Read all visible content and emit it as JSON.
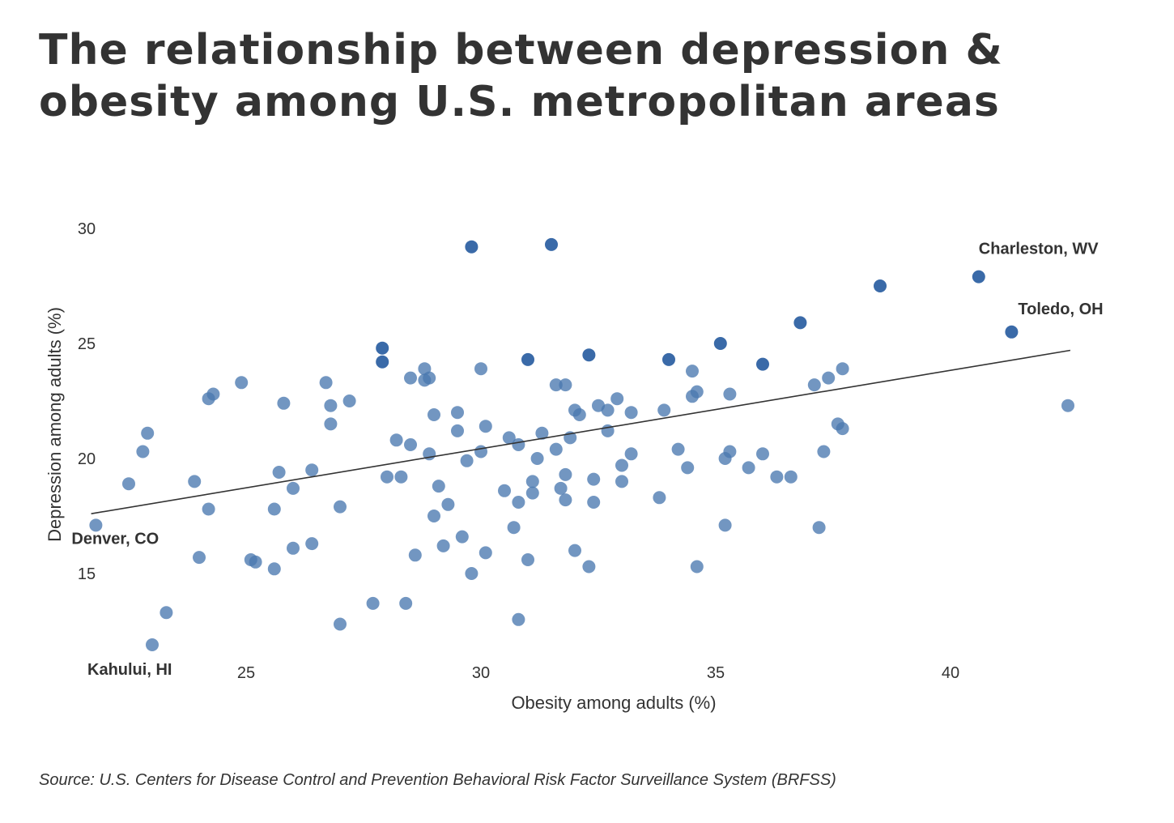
{
  "page": {
    "title": "The relationship between depression & obesity among U.S. metropolitan areas",
    "source": "Source: U.S. Centers for Disease Control and Prevention Behavioral Risk Factor Surveillance System (BRFSS)"
  },
  "colors": {
    "point": "#4a78b0",
    "point_highlight": "#3a6aa8",
    "trend_line": "#333333",
    "text": "#333333"
  },
  "chart_data": {
    "type": "scatter",
    "xlabel": "Obesity among adults (%)",
    "ylabel": "Depression among adults (%)",
    "xlim": [
      21.5,
      43
    ],
    "ylim": [
      11.5,
      30.5
    ],
    "x_ticks": [
      25,
      30,
      35,
      40
    ],
    "y_ticks": [
      15,
      20,
      25,
      30
    ],
    "grid": false,
    "legend": "none",
    "trend_line": {
      "x": [
        21.7,
        42.55
      ],
      "y": [
        17.6,
        24.7
      ]
    },
    "labels": [
      {
        "text": "Charleston, WV",
        "x": 40.6,
        "y": 27.9
      },
      {
        "text": "Toledo, OH",
        "x": 41.3,
        "y": 25.5
      },
      {
        "text": "Denver, CO",
        "x": 21.8,
        "y": 17.1
      },
      {
        "text": "Kahului, HI",
        "x": 23.0,
        "y": 11.9
      }
    ],
    "points": [
      {
        "x": 29.8,
        "y": 29.2,
        "highlight": true
      },
      {
        "x": 31.5,
        "y": 29.3,
        "highlight": true
      },
      {
        "x": 38.5,
        "y": 27.5,
        "highlight": true
      },
      {
        "x": 40.6,
        "y": 27.9,
        "highlight": true
      },
      {
        "x": 36.8,
        "y": 25.9,
        "highlight": true
      },
      {
        "x": 41.3,
        "y": 25.5,
        "highlight": true
      },
      {
        "x": 35.1,
        "y": 25.0,
        "highlight": true
      },
      {
        "x": 27.9,
        "y": 24.8,
        "highlight": true
      },
      {
        "x": 27.9,
        "y": 24.2,
        "highlight": true
      },
      {
        "x": 31.0,
        "y": 24.3,
        "highlight": true
      },
      {
        "x": 32.3,
        "y": 24.5,
        "highlight": true
      },
      {
        "x": 34.0,
        "y": 24.3,
        "highlight": true
      },
      {
        "x": 36.0,
        "y": 24.1,
        "highlight": true
      },
      {
        "x": 42.5,
        "y": 22.3
      },
      {
        "x": 21.8,
        "y": 17.1
      },
      {
        "x": 23.0,
        "y": 11.9
      },
      {
        "x": 22.5,
        "y": 18.9
      },
      {
        "x": 22.8,
        "y": 20.3
      },
      {
        "x": 22.9,
        "y": 21.1
      },
      {
        "x": 23.3,
        "y": 13.3
      },
      {
        "x": 23.9,
        "y": 19.0
      },
      {
        "x": 24.0,
        "y": 15.7
      },
      {
        "x": 24.2,
        "y": 22.6
      },
      {
        "x": 24.3,
        "y": 22.8
      },
      {
        "x": 24.2,
        "y": 17.8
      },
      {
        "x": 24.9,
        "y": 23.3
      },
      {
        "x": 25.1,
        "y": 15.6
      },
      {
        "x": 25.2,
        "y": 15.5
      },
      {
        "x": 25.6,
        "y": 15.2
      },
      {
        "x": 25.6,
        "y": 17.8
      },
      {
        "x": 25.7,
        "y": 19.4
      },
      {
        "x": 25.8,
        "y": 22.4
      },
      {
        "x": 26.0,
        "y": 18.7
      },
      {
        "x": 26.0,
        "y": 16.1
      },
      {
        "x": 26.4,
        "y": 16.3
      },
      {
        "x": 26.4,
        "y": 19.5
      },
      {
        "x": 26.7,
        "y": 23.3
      },
      {
        "x": 26.8,
        "y": 22.3
      },
      {
        "x": 26.8,
        "y": 21.5
      },
      {
        "x": 27.0,
        "y": 17.9
      },
      {
        "x": 27.0,
        "y": 12.8
      },
      {
        "x": 27.2,
        "y": 22.5
      },
      {
        "x": 27.7,
        "y": 13.7
      },
      {
        "x": 28.0,
        "y": 19.2
      },
      {
        "x": 28.2,
        "y": 20.8
      },
      {
        "x": 28.3,
        "y": 19.2
      },
      {
        "x": 28.4,
        "y": 13.7
      },
      {
        "x": 28.5,
        "y": 20.6
      },
      {
        "x": 28.5,
        "y": 23.5
      },
      {
        "x": 28.6,
        "y": 15.8
      },
      {
        "x": 28.8,
        "y": 23.9
      },
      {
        "x": 28.8,
        "y": 23.4
      },
      {
        "x": 28.9,
        "y": 23.5
      },
      {
        "x": 28.9,
        "y": 20.2
      },
      {
        "x": 29.0,
        "y": 21.9
      },
      {
        "x": 29.0,
        "y": 17.5
      },
      {
        "x": 29.1,
        "y": 18.8
      },
      {
        "x": 29.2,
        "y": 16.2
      },
      {
        "x": 29.3,
        "y": 18.0
      },
      {
        "x": 29.5,
        "y": 22.0
      },
      {
        "x": 29.5,
        "y": 21.2
      },
      {
        "x": 29.6,
        "y": 16.6
      },
      {
        "x": 29.7,
        "y": 19.9
      },
      {
        "x": 29.8,
        "y": 15.0
      },
      {
        "x": 30.0,
        "y": 23.9
      },
      {
        "x": 30.0,
        "y": 20.3
      },
      {
        "x": 30.1,
        "y": 21.4
      },
      {
        "x": 30.1,
        "y": 15.9
      },
      {
        "x": 30.5,
        "y": 18.6
      },
      {
        "x": 30.6,
        "y": 20.9
      },
      {
        "x": 30.7,
        "y": 17.0
      },
      {
        "x": 30.8,
        "y": 13.0
      },
      {
        "x": 30.8,
        "y": 18.1
      },
      {
        "x": 30.8,
        "y": 20.6
      },
      {
        "x": 31.0,
        "y": 15.6
      },
      {
        "x": 31.1,
        "y": 18.5
      },
      {
        "x": 31.1,
        "y": 19.0
      },
      {
        "x": 31.2,
        "y": 20.0
      },
      {
        "x": 31.3,
        "y": 21.1
      },
      {
        "x": 31.6,
        "y": 20.4
      },
      {
        "x": 31.6,
        "y": 23.2
      },
      {
        "x": 31.7,
        "y": 18.7
      },
      {
        "x": 31.8,
        "y": 23.2
      },
      {
        "x": 31.8,
        "y": 18.2
      },
      {
        "x": 31.8,
        "y": 19.3
      },
      {
        "x": 31.9,
        "y": 20.9
      },
      {
        "x": 32.0,
        "y": 22.1
      },
      {
        "x": 32.0,
        "y": 16.0
      },
      {
        "x": 32.1,
        "y": 21.9
      },
      {
        "x": 32.3,
        "y": 15.3
      },
      {
        "x": 32.4,
        "y": 19.1
      },
      {
        "x": 32.4,
        "y": 18.1
      },
      {
        "x": 32.5,
        "y": 22.3
      },
      {
        "x": 32.7,
        "y": 22.1
      },
      {
        "x": 32.7,
        "y": 21.2
      },
      {
        "x": 32.9,
        "y": 22.6
      },
      {
        "x": 33.0,
        "y": 19.7
      },
      {
        "x": 33.0,
        "y": 19.0
      },
      {
        "x": 33.2,
        "y": 22.0
      },
      {
        "x": 33.2,
        "y": 20.2
      },
      {
        "x": 33.8,
        "y": 18.3
      },
      {
        "x": 33.9,
        "y": 22.1
      },
      {
        "x": 34.2,
        "y": 20.4
      },
      {
        "x": 34.4,
        "y": 19.6
      },
      {
        "x": 34.5,
        "y": 23.8
      },
      {
        "x": 34.5,
        "y": 22.7
      },
      {
        "x": 34.6,
        "y": 22.9
      },
      {
        "x": 34.6,
        "y": 15.3
      },
      {
        "x": 35.2,
        "y": 20.0
      },
      {
        "x": 35.2,
        "y": 17.1
      },
      {
        "x": 35.3,
        "y": 20.3
      },
      {
        "x": 35.3,
        "y": 22.8
      },
      {
        "x": 35.7,
        "y": 19.6
      },
      {
        "x": 36.0,
        "y": 20.2
      },
      {
        "x": 36.3,
        "y": 19.2
      },
      {
        "x": 36.6,
        "y": 19.2
      },
      {
        "x": 37.1,
        "y": 23.2
      },
      {
        "x": 37.2,
        "y": 17.0
      },
      {
        "x": 37.3,
        "y": 20.3
      },
      {
        "x": 37.4,
        "y": 23.5
      },
      {
        "x": 37.6,
        "y": 21.5
      },
      {
        "x": 37.7,
        "y": 21.3
      },
      {
        "x": 37.7,
        "y": 23.9
      }
    ]
  }
}
